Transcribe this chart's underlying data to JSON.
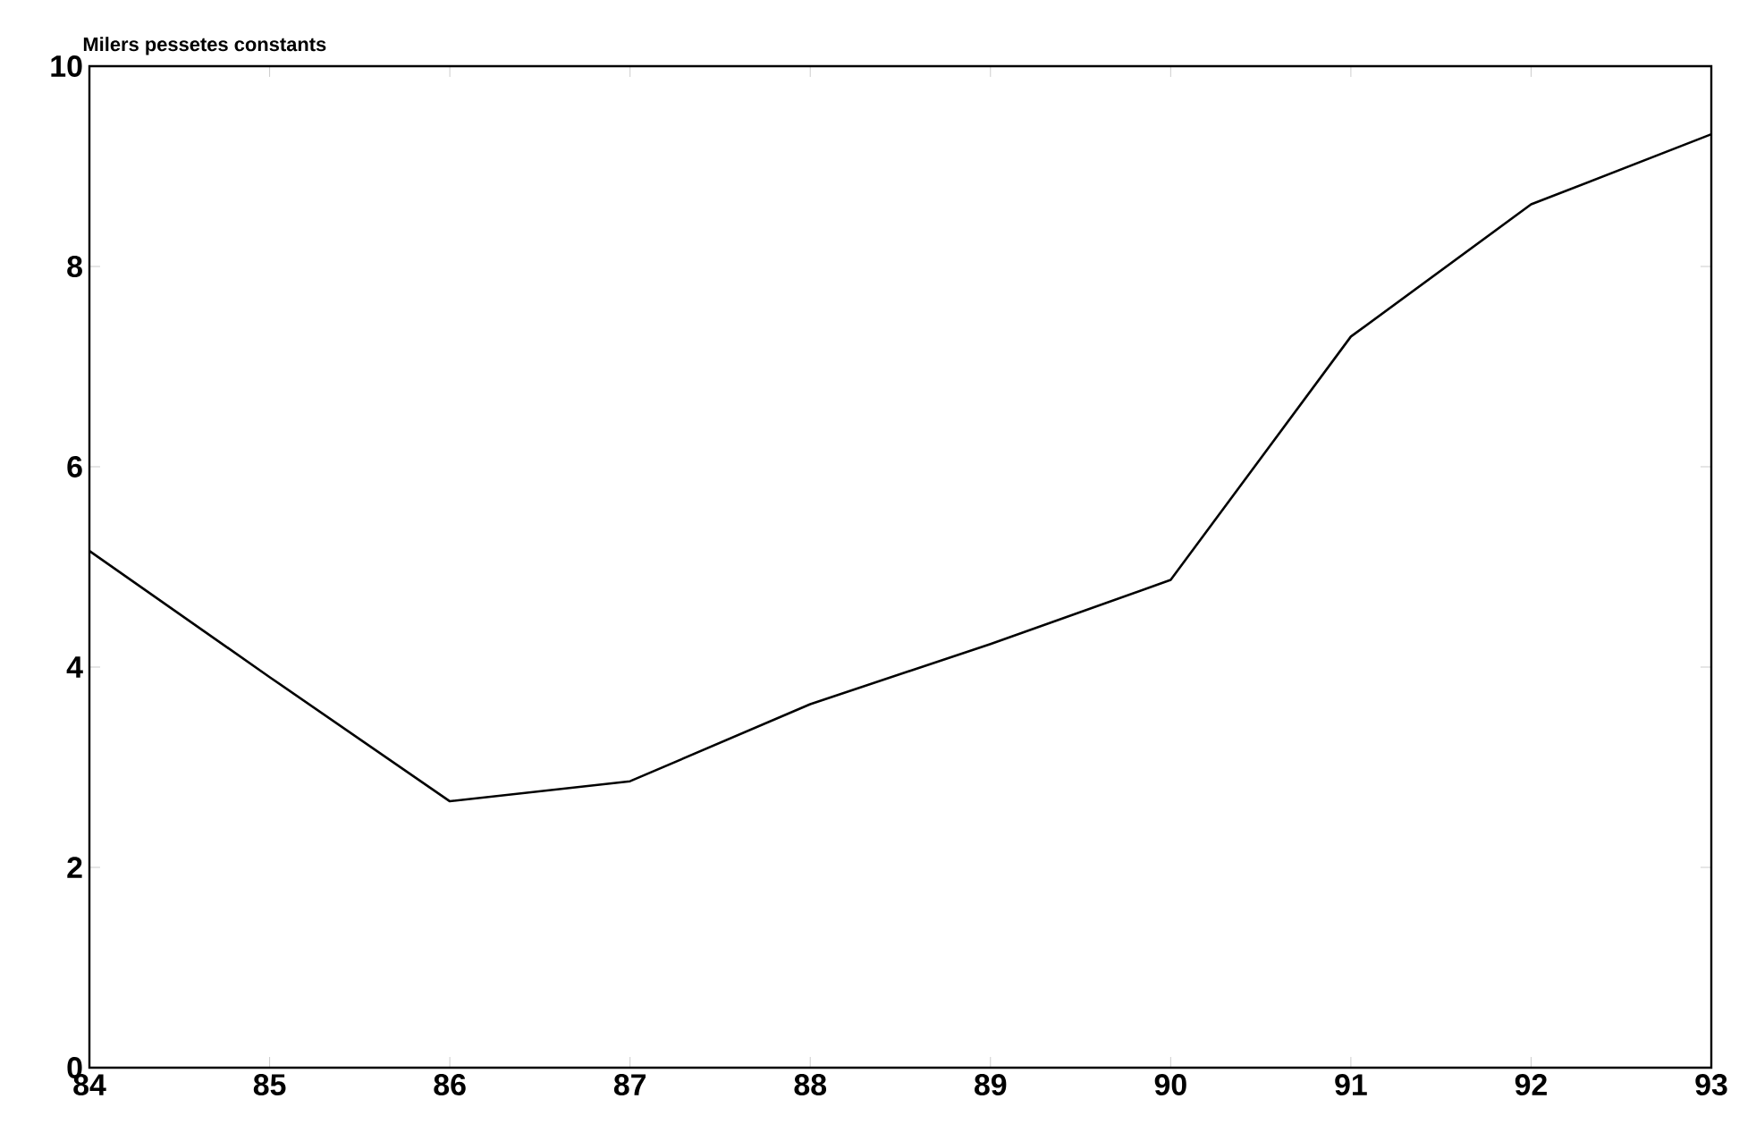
{
  "chart_data": {
    "type": "line",
    "ylabel": "Milers pessetes constants",
    "x": [
      84,
      85,
      86,
      87,
      88,
      89,
      90,
      91,
      92,
      93
    ],
    "series": [
      {
        "color": "#000000",
        "values": [
          5.16,
          3.9,
          2.66,
          2.86,
          3.63,
          4.23,
          4.87,
          7.3,
          8.62,
          9.32
        ]
      }
    ],
    "xlim": [
      84,
      93
    ],
    "ylim": [
      0,
      10
    ],
    "xticks": [
      84,
      85,
      86,
      87,
      88,
      89,
      90,
      91,
      92,
      93
    ],
    "yticks": [
      0,
      2,
      4,
      6,
      8,
      10
    ],
    "grid": false,
    "marker": "none",
    "line_style": "solid"
  }
}
